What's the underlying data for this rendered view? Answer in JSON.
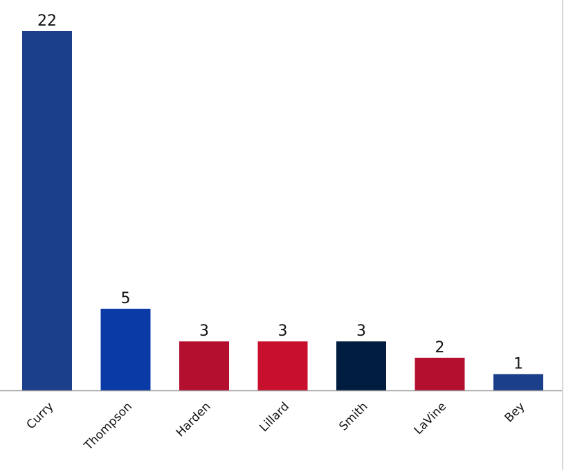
{
  "chart_data": {
    "type": "bar",
    "title": "",
    "xlabel": "",
    "ylabel": "",
    "categories": [
      "Curry",
      "Thompson",
      "Harden",
      "Lillard",
      "Smith",
      "LaVine",
      "Bey"
    ],
    "values": [
      22,
      5,
      3,
      3,
      3,
      2,
      1
    ],
    "value_labels": [
      "22",
      "5",
      "3",
      "3",
      "3",
      "2",
      "1"
    ],
    "colors": [
      "#1c3f8c",
      "#0a3aa6",
      "#b50f2f",
      "#c8102e",
      "#001d3f",
      "#b50f2f",
      "#1c3f8c"
    ],
    "ylim": [
      0,
      22
    ],
    "grid": false,
    "legend": "none",
    "data_labels": "above"
  }
}
